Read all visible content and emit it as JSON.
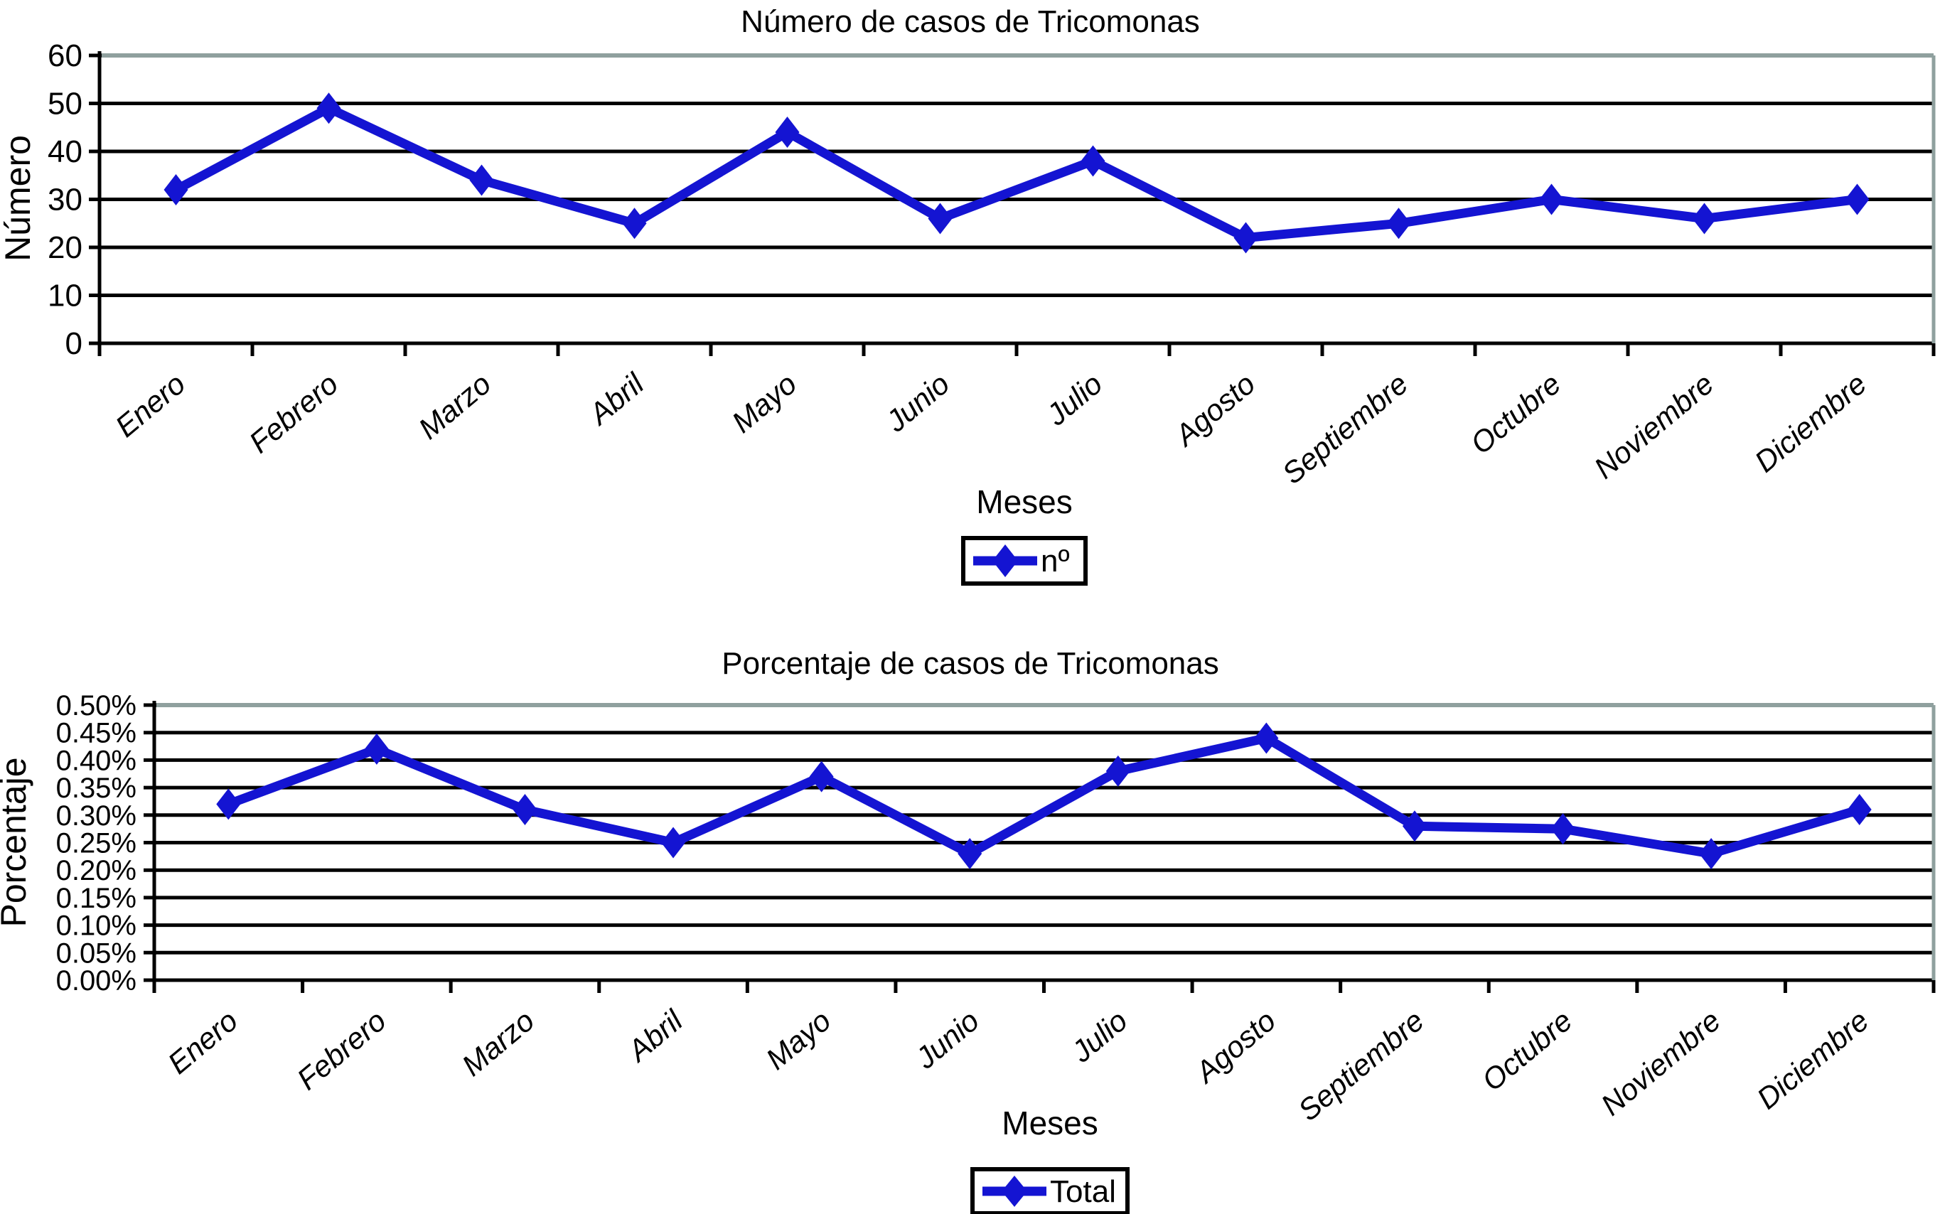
{
  "figure": {
    "background": "#ffffff",
    "months_axis_label": "Meses"
  },
  "colors": {
    "series_blue": "#1414d2",
    "gridline_black": "#000000",
    "plot_border_grey": "#8fa09e",
    "legend_border": "#000000",
    "legend_background": "#ffffff",
    "text": "#000000"
  },
  "chart_data": [
    {
      "type": "line",
      "title": "Número de casos de Tricomonas",
      "xlabel": "Meses",
      "ylabel": "Número",
      "categories": [
        "Enero",
        "Febrero",
        "Marzo",
        "Abril",
        "Mayo",
        "Junio",
        "Julio",
        "Agosto",
        "Septiembre",
        "Octubre",
        "Noviembre",
        "Diciembre"
      ],
      "series": [
        {
          "name": "nº",
          "values": [
            32,
            49,
            34,
            25,
            44,
            26,
            38,
            22,
            25,
            30,
            26,
            30
          ]
        }
      ],
      "ylim": [
        0,
        60
      ],
      "y_tick_step": 10,
      "y_tick_labels": [
        "0",
        "10",
        "20",
        "30",
        "40",
        "50",
        "60"
      ],
      "grid": "horizontal",
      "legend_position": "bottom",
      "legend_label": "nº",
      "marker": "diamond"
    },
    {
      "type": "line",
      "title": "Porcentaje de casos de Tricomonas",
      "xlabel": "Meses",
      "ylabel": "Porcentaje",
      "categories": [
        "Enero",
        "Febrero",
        "Marzo",
        "Abril",
        "Mayo",
        "Junio",
        "Julio",
        "Agosto",
        "Septiembre",
        "Octubre",
        "Noviembre",
        "Diciembre"
      ],
      "series": [
        {
          "name": "Total",
          "values": [
            0.32,
            0.42,
            0.31,
            0.25,
            0.37,
            0.23,
            0.38,
            0.44,
            0.28,
            0.275,
            0.23,
            0.31
          ]
        }
      ],
      "ylim": [
        0,
        0.5
      ],
      "y_tick_step": 0.05,
      "y_unit": "%",
      "y_tick_labels": [
        "0.00%",
        "0.05%",
        "0.10%",
        "0.15%",
        "0.20%",
        "0.25%",
        "0.30%",
        "0.35%",
        "0.40%",
        "0.45%",
        "0.50%"
      ],
      "grid": "horizontal",
      "legend_position": "bottom",
      "legend_label": "Total",
      "marker": "diamond"
    }
  ]
}
